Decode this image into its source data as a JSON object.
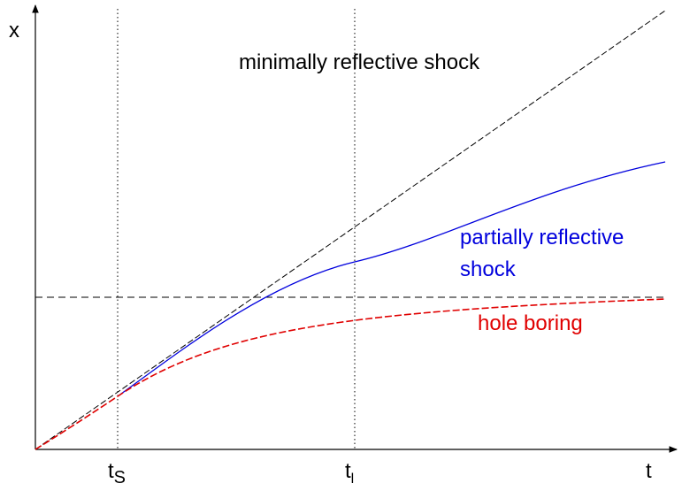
{
  "axes": {
    "y_label": "x",
    "x_label": "t"
  },
  "markers": [
    {
      "main": "t",
      "sub": "S"
    },
    {
      "main": "t",
      "sub": "l"
    }
  ],
  "curves": [
    {
      "lines": [
        "minimally reflective shock"
      ]
    },
    {
      "lines": [
        "partially reflective",
        "shock"
      ]
    },
    {
      "lines": [
        "hole boring"
      ]
    }
  ]
}
